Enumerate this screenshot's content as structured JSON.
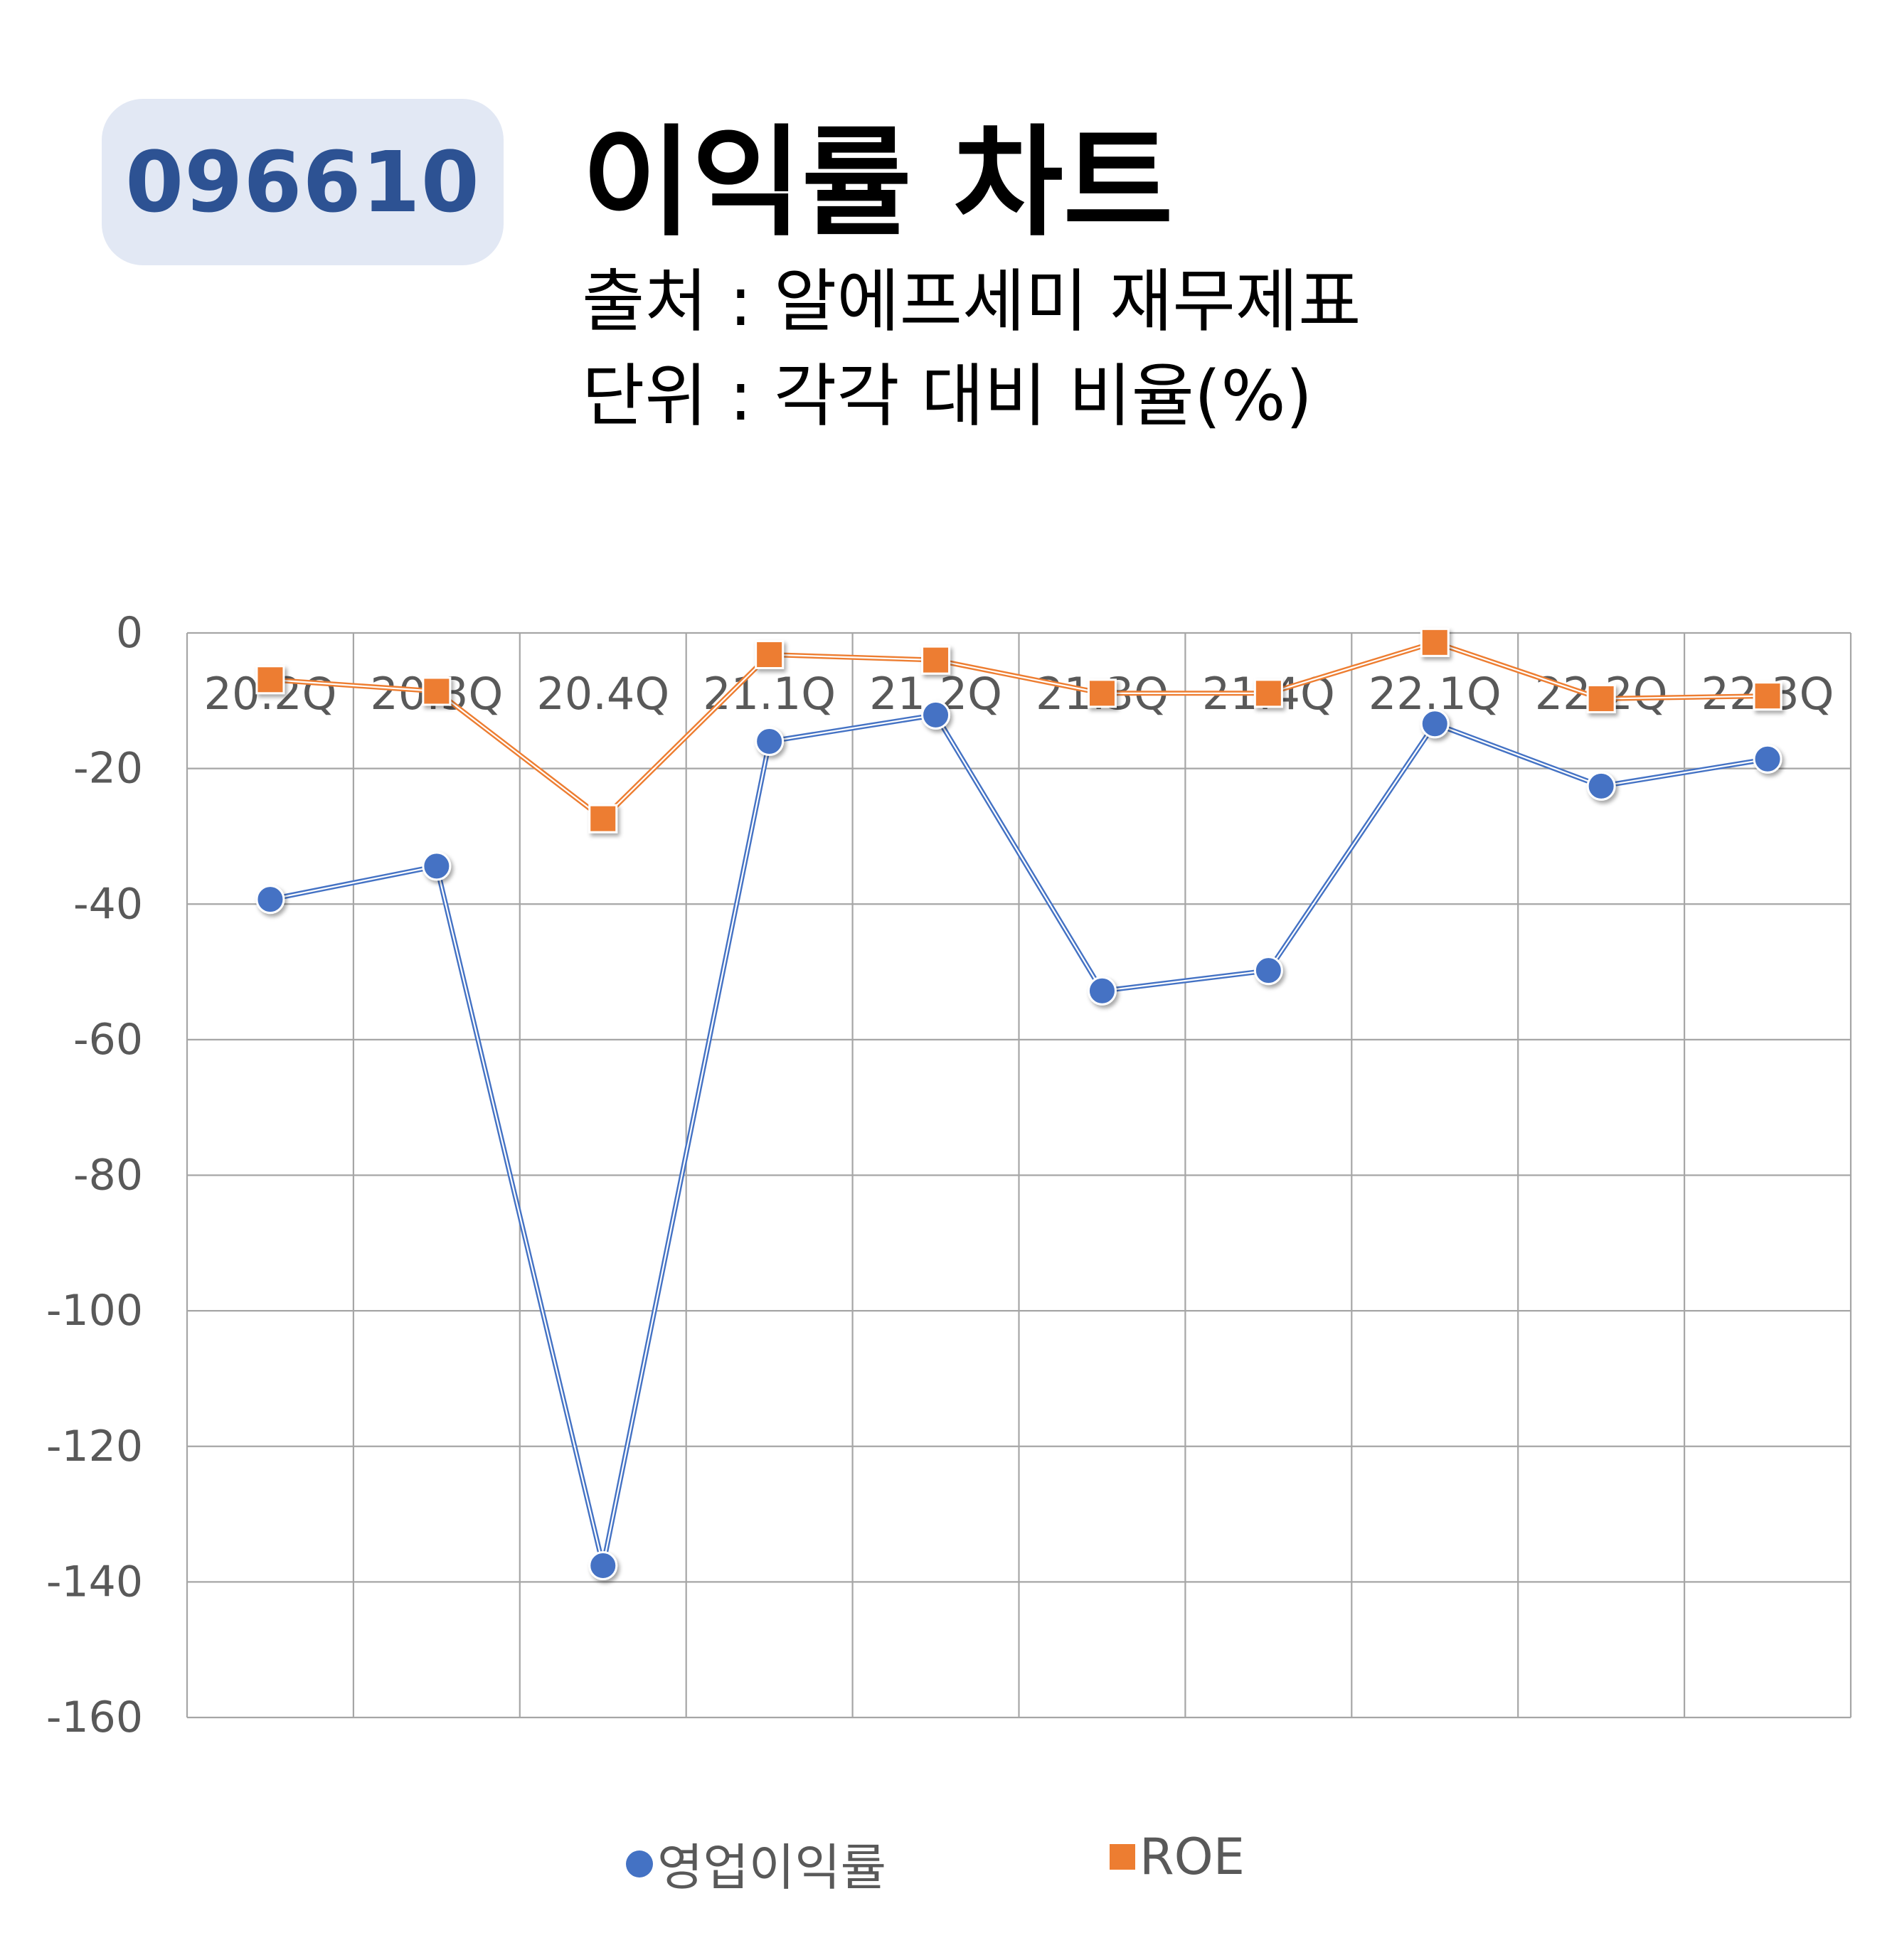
{
  "header": {
    "ticker": "096610",
    "title": "이익률 차트",
    "source": "출처 : 알에프세미 재무제표",
    "unit": "단위 : 각각 대비 비율(%)"
  },
  "colors": {
    "badge_bg": "#e2e8f4",
    "badge_text": "#2d5293",
    "operating_margin": "#4472c4",
    "roe": "#ed7d31",
    "grid": "#9a9a9a",
    "axis_text": "#595959"
  },
  "chart_data": {
    "type": "line",
    "categories": [
      "20.2Q",
      "20.3Q",
      "20.4Q",
      "21.1Q",
      "21.2Q",
      "21.3Q",
      "21.4Q",
      "22.1Q",
      "22.2Q",
      "22.3Q"
    ],
    "series": [
      {
        "name": "영업이익률",
        "marker": "circle",
        "values": [
          -39.3,
          -34.4,
          -137.6,
          -16.0,
          -12.1,
          -52.8,
          -49.8,
          -13.4,
          -22.6,
          -18.6
        ]
      },
      {
        "name": "ROE",
        "marker": "square",
        "values": [
          -6.9,
          -8.6,
          -27.4,
          -3.2,
          -4.0,
          -8.9,
          -8.9,
          -1.4,
          -9.7,
          -9.3
        ]
      }
    ],
    "ylim": [
      -160,
      0
    ],
    "yticks": [
      "0",
      "-20",
      "-40",
      "-60",
      "-80",
      "-100",
      "-120",
      "-140",
      "-160"
    ],
    "ytick_values": [
      0,
      -20,
      -40,
      -60,
      -80,
      -100,
      -120,
      -140,
      -160
    ],
    "category_labels_position": "top",
    "grid": true,
    "legend": "bottom"
  }
}
